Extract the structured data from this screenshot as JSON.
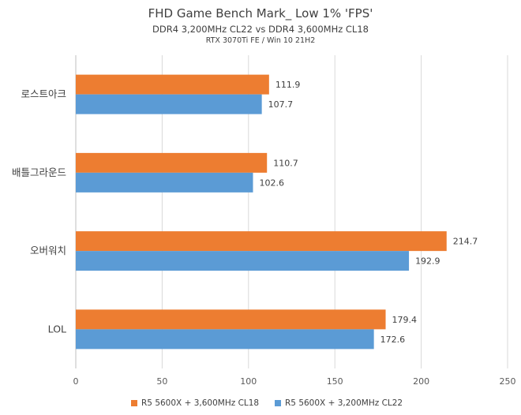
{
  "chart_data": {
    "type": "bar",
    "orientation": "horizontal",
    "title": "FHD Game Bench Mark_ Low 1% 'FPS'",
    "subtitle": "DDR4 3,200MHz CL22 vs DDR4 3,600MHz CL18",
    "subtitle2": "RTX 3070Ti FE / Win 10 21H2",
    "categories": [
      "로스트아크",
      "배틀그라운드",
      "오버워치",
      "LOL"
    ],
    "series": [
      {
        "name": "R5 5600X + 3,600MHz CL18",
        "color": "#ed7d31",
        "values": [
          111.9,
          110.7,
          214.7,
          179.4
        ]
      },
      {
        "name": "R5 5600X + 3,200MHz CL22",
        "color": "#5b9bd5",
        "values": [
          107.7,
          102.6,
          192.9,
          172.6
        ]
      }
    ],
    "xlim": [
      0,
      250
    ],
    "xticks": [
      "0",
      "50",
      "100",
      "150",
      "200",
      "250"
    ],
    "grid": true,
    "legend_position": "bottom"
  }
}
